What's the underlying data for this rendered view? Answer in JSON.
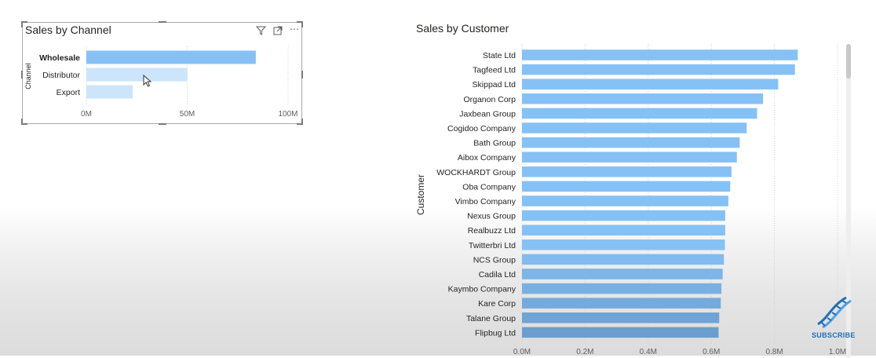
{
  "channel_chart": {
    "title": "Sales by Channel",
    "icons": [
      "filter-icon",
      "focus-mode-icon",
      "more-options-icon"
    ]
  },
  "customer_chart": {
    "title": "Sales by Customer"
  },
  "subscribe_label": "SUBSCRIBE",
  "colors": {
    "bar_highlight": "#85c1f5",
    "bar_dimmed": "#cce5fb",
    "bar_gradient_top": "#85c1f5",
    "bar_gradient_bottom": "#6b9ecf",
    "accent_logo": "#1e6fb8",
    "axis_text": "#605e5c"
  },
  "chart_data": [
    {
      "type": "bar",
      "orientation": "horizontal",
      "title": "Sales by Channel",
      "ylabel": "Channel",
      "xlabel": "",
      "categories": [
        "Wholesale",
        "Distributor",
        "Export"
      ],
      "values": [
        84,
        50,
        23
      ],
      "highlighted": "Wholesale",
      "xlim": [
        0,
        100
      ],
      "xticks": [
        "0M",
        "50M",
        "100M"
      ],
      "xtick_values": [
        0,
        50,
        100
      ],
      "grid": true
    },
    {
      "type": "bar",
      "orientation": "horizontal",
      "title": "Sales by Customer",
      "ylabel": "Customer",
      "xlabel": "",
      "categories": [
        "State Ltd",
        "Tagfeed Ltd",
        "Skippad Ltd",
        "Organon Corp",
        "Jaxbean Group",
        "Cogidoo Company",
        "Bath Group",
        "Aibox Company",
        "WOCKHARDT Group",
        "Oba Company",
        "Vimbo Company",
        "Nexus Group",
        "Realbuzz Ltd",
        "Twitterbri Ltd",
        "NCS Group",
        "Cadila Ltd",
        "Kaymbo Company",
        "Kare Corp",
        "Talane Group",
        "Flipbug Ltd"
      ],
      "values": [
        0.874,
        0.865,
        0.812,
        0.764,
        0.745,
        0.712,
        0.69,
        0.681,
        0.664,
        0.66,
        0.654,
        0.644,
        0.644,
        0.643,
        0.64,
        0.636,
        0.632,
        0.63,
        0.625,
        0.623
      ],
      "xlim": [
        0,
        1.0
      ],
      "xticks": [
        "0.0M",
        "0.2M",
        "0.4M",
        "0.6M",
        "0.8M",
        "1.0M"
      ],
      "xtick_values": [
        0,
        0.2,
        0.4,
        0.6,
        0.8,
        1.0
      ],
      "grid": true
    }
  ]
}
